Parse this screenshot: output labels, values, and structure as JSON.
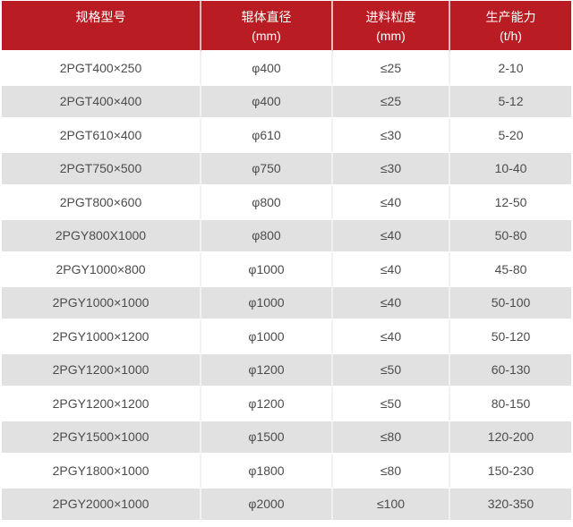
{
  "chart_data": {
    "type": "table",
    "columns": [
      {
        "label": "规格型号",
        "sub": ""
      },
      {
        "label": "辊体直径",
        "sub": "(mm)"
      },
      {
        "label": "进料粒度",
        "sub": "(mm)"
      },
      {
        "label": "生产能力",
        "sub": "(t/h)"
      }
    ],
    "rows": [
      [
        "2PGT400×250",
        "φ400",
        "≤25",
        "2-10"
      ],
      [
        "2PGT400×400",
        "φ400",
        "≤25",
        "5-12"
      ],
      [
        "2PGT610×400",
        "φ610",
        "≤30",
        "5-20"
      ],
      [
        "2PGT750×500",
        "φ750",
        "≤30",
        "10-40"
      ],
      [
        "2PGT800×600",
        "φ800",
        "≤40",
        "12-50"
      ],
      [
        "2PGY800X1000",
        "φ800",
        "≤40",
        "50-80"
      ],
      [
        "2PGY1000×800",
        "φ1000",
        "≤40",
        "45-80"
      ],
      [
        "2PGY1000×1000",
        "φ1000",
        "≤40",
        "50-100"
      ],
      [
        "2PGY1000×1200",
        "φ1000",
        "≤40",
        "50-120"
      ],
      [
        "2PGY1200×1000",
        "φ1200",
        "≤50",
        "60-130"
      ],
      [
        "2PGY1200×1200",
        "φ1200",
        "≤50",
        "80-150"
      ],
      [
        "2PGY1500×1000",
        "φ1500",
        "≤80",
        "120-200"
      ],
      [
        "2PGY1800×1000",
        "φ1800",
        "≤80",
        "150-230"
      ],
      [
        "2PGY2000×1000",
        "φ2000",
        "≤100",
        "320-350"
      ]
    ]
  },
  "colors": {
    "header_bg": "#b91c22",
    "header_text": "#ffffff",
    "header_divider": "#e8bcbd",
    "row_even_bg": "#ffffff",
    "row_odd_bg": "#e1e1e1",
    "row_gap": "#ffffff",
    "body_divider": "#f1f1f1",
    "cell_text": "#4c4c4c"
  }
}
